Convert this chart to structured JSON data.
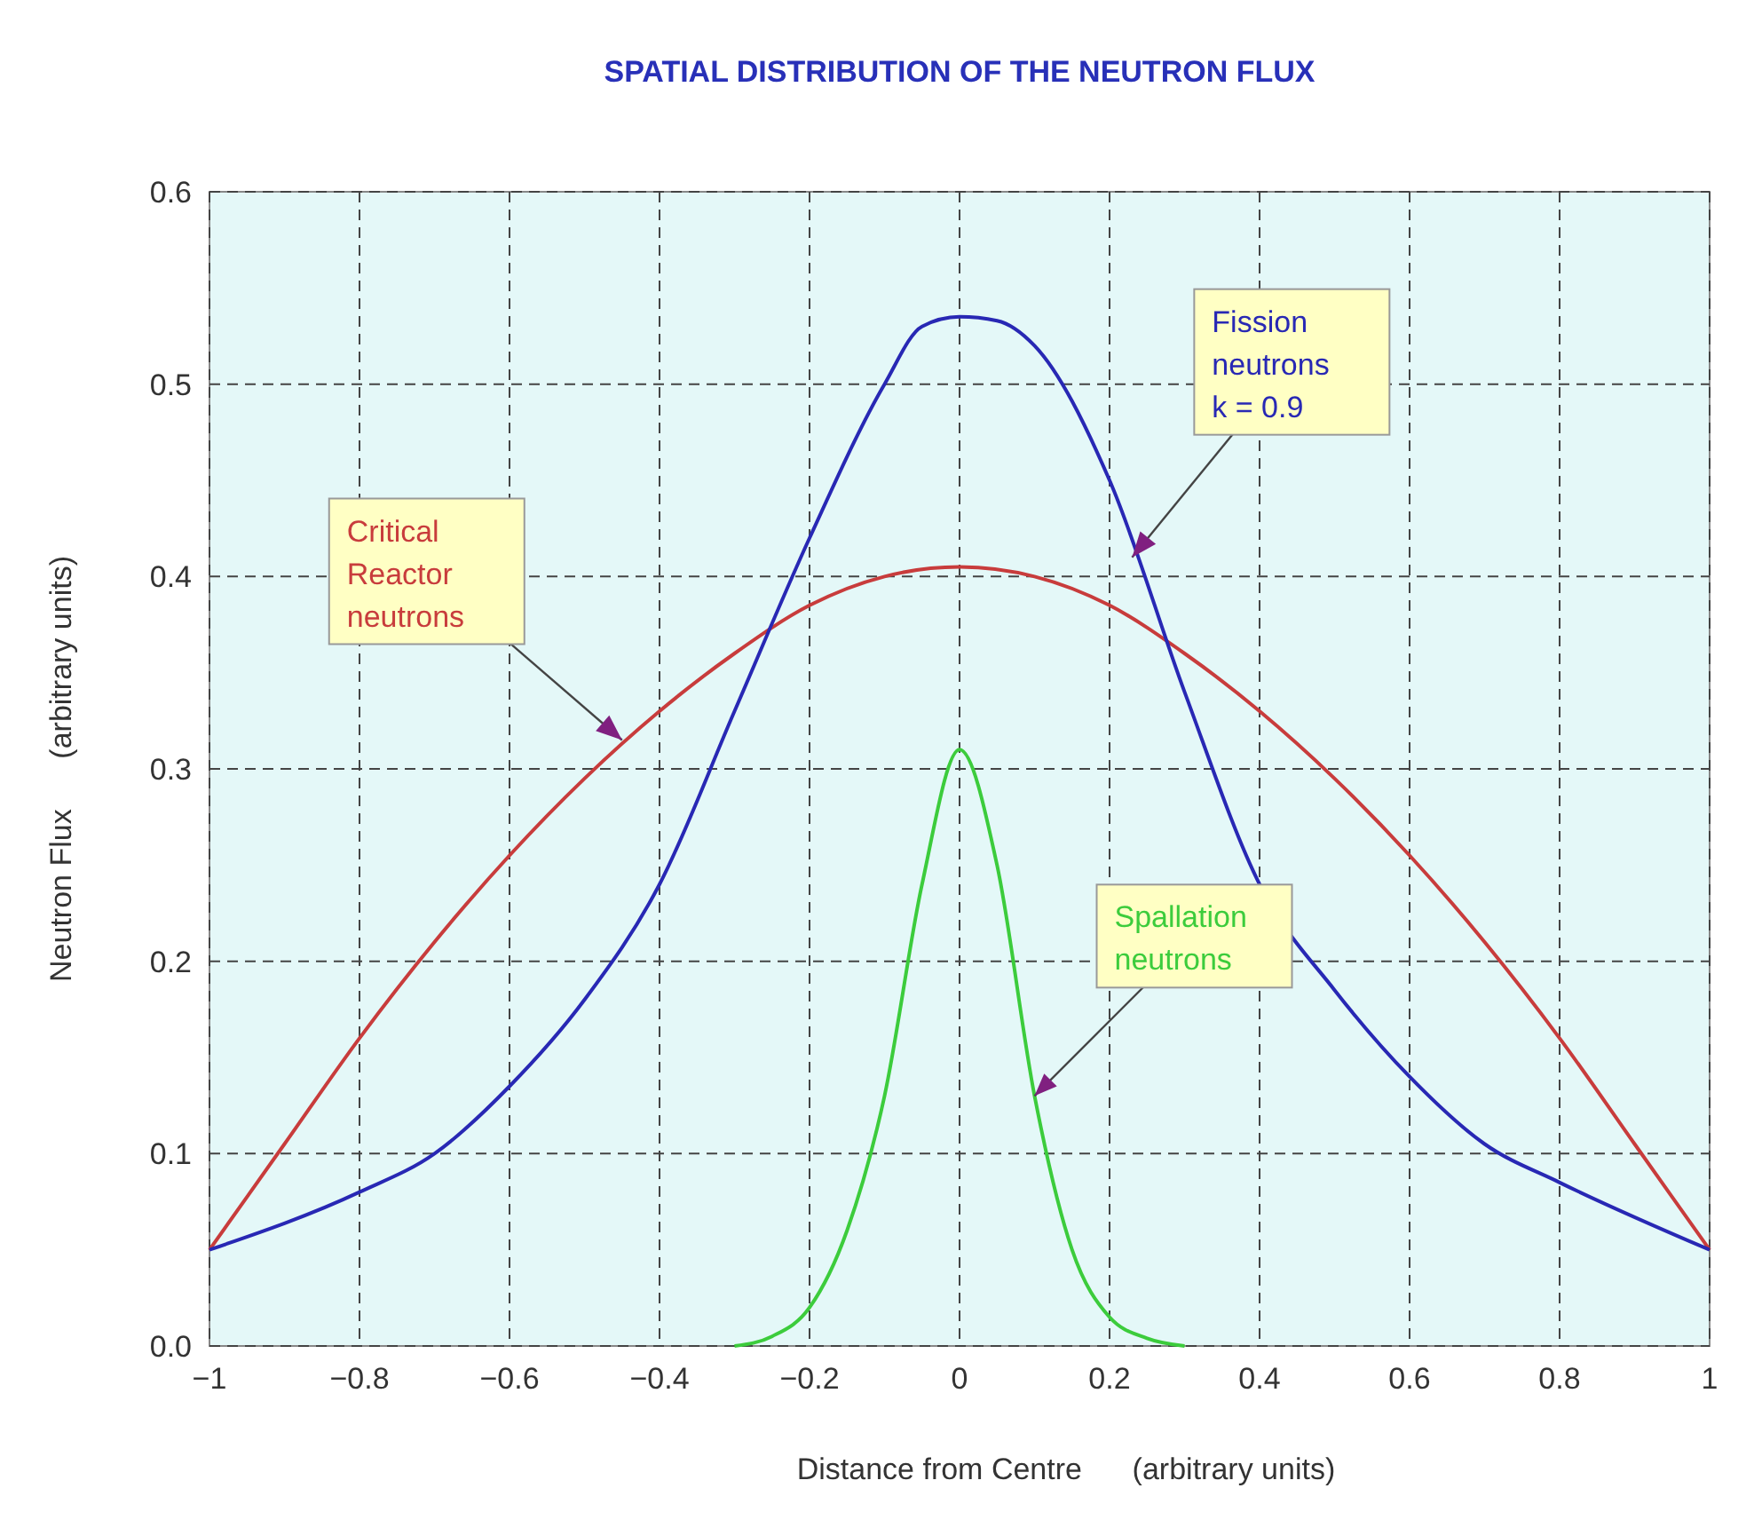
{
  "chart_data": {
    "type": "line",
    "title": "SPATIAL DISTRIBUTION OF THE NEUTRON FLUX",
    "xlabel": "Distance from Centre      (arbitrary units)",
    "ylabel": "Neutron Flux      (arbitrary units)",
    "xlim": [
      -1,
      1
    ],
    "ylim": [
      0,
      0.6
    ],
    "xticks": [
      {
        "value": -1,
        "label": "−1"
      },
      {
        "value": -0.8,
        "label": "−0.8"
      },
      {
        "value": -0.6,
        "label": "−0.6"
      },
      {
        "value": -0.4,
        "label": "−0.4"
      },
      {
        "value": -0.2,
        "label": "−0.2"
      },
      0,
      0.2,
      0.4,
      0.6,
      0.8,
      1
    ],
    "yticks": [
      {
        "value": 0,
        "label": "0.0"
      },
      0.1,
      0.2,
      0.3,
      0.4,
      0.5,
      0.6
    ],
    "grid": true,
    "marker": "none",
    "series": [
      {
        "color": "#c83c3c",
        "x": [
          -1,
          -0.9,
          -0.8,
          -0.7,
          -0.6,
          -0.5,
          -0.4,
          -0.3,
          -0.2,
          -0.1,
          0,
          0.1,
          0.2,
          0.3,
          0.4,
          0.5,
          0.6,
          0.7,
          0.8,
          0.9,
          1
        ],
        "values": [
          0.05,
          0.105,
          0.16,
          0.21,
          0.255,
          0.295,
          0.33,
          0.36,
          0.385,
          0.4,
          0.405,
          0.4,
          0.385,
          0.36,
          0.33,
          0.295,
          0.255,
          0.21,
          0.16,
          0.105,
          0.05
        ]
      },
      {
        "color": "#2828b4",
        "x": [
          -1,
          -0.8,
          -0.7,
          -0.6,
          -0.5,
          -0.4,
          -0.3,
          -0.2,
          -0.1,
          -0.05,
          0,
          0.05,
          0.1,
          0.2,
          0.3,
          0.4,
          0.5,
          0.6,
          0.7,
          0.8,
          1
        ],
        "values": [
          0.05,
          0.08,
          0.1,
          0.135,
          0.18,
          0.24,
          0.33,
          0.42,
          0.5,
          0.53,
          0.535,
          0.533,
          0.52,
          0.45,
          0.34,
          0.24,
          0.185,
          0.14,
          0.105,
          0.085,
          0.05
        ]
      },
      {
        "color": "#3ccc3c",
        "x": [
          -0.3,
          -0.25,
          -0.2,
          -0.15,
          -0.1,
          -0.05,
          0,
          0.05,
          0.1,
          0.15,
          0.2,
          0.25,
          0.3
        ],
        "values": [
          0,
          0.005,
          0.02,
          0.06,
          0.13,
          0.24,
          0.31,
          0.25,
          0.13,
          0.05,
          0.015,
          0.004,
          0
        ]
      }
    ],
    "annotations": [
      {
        "text": "Critical\nReactor\nneutrons",
        "x": -0.45,
        "y": 0.315
      },
      {
        "text": "Fission\nneutrons\nk = 0.9",
        "x": 0.23,
        "y": 0.41
      },
      {
        "text": "Spallation\nneutrons",
        "x": 0.1,
        "y": 0.13
      }
    ]
  }
}
